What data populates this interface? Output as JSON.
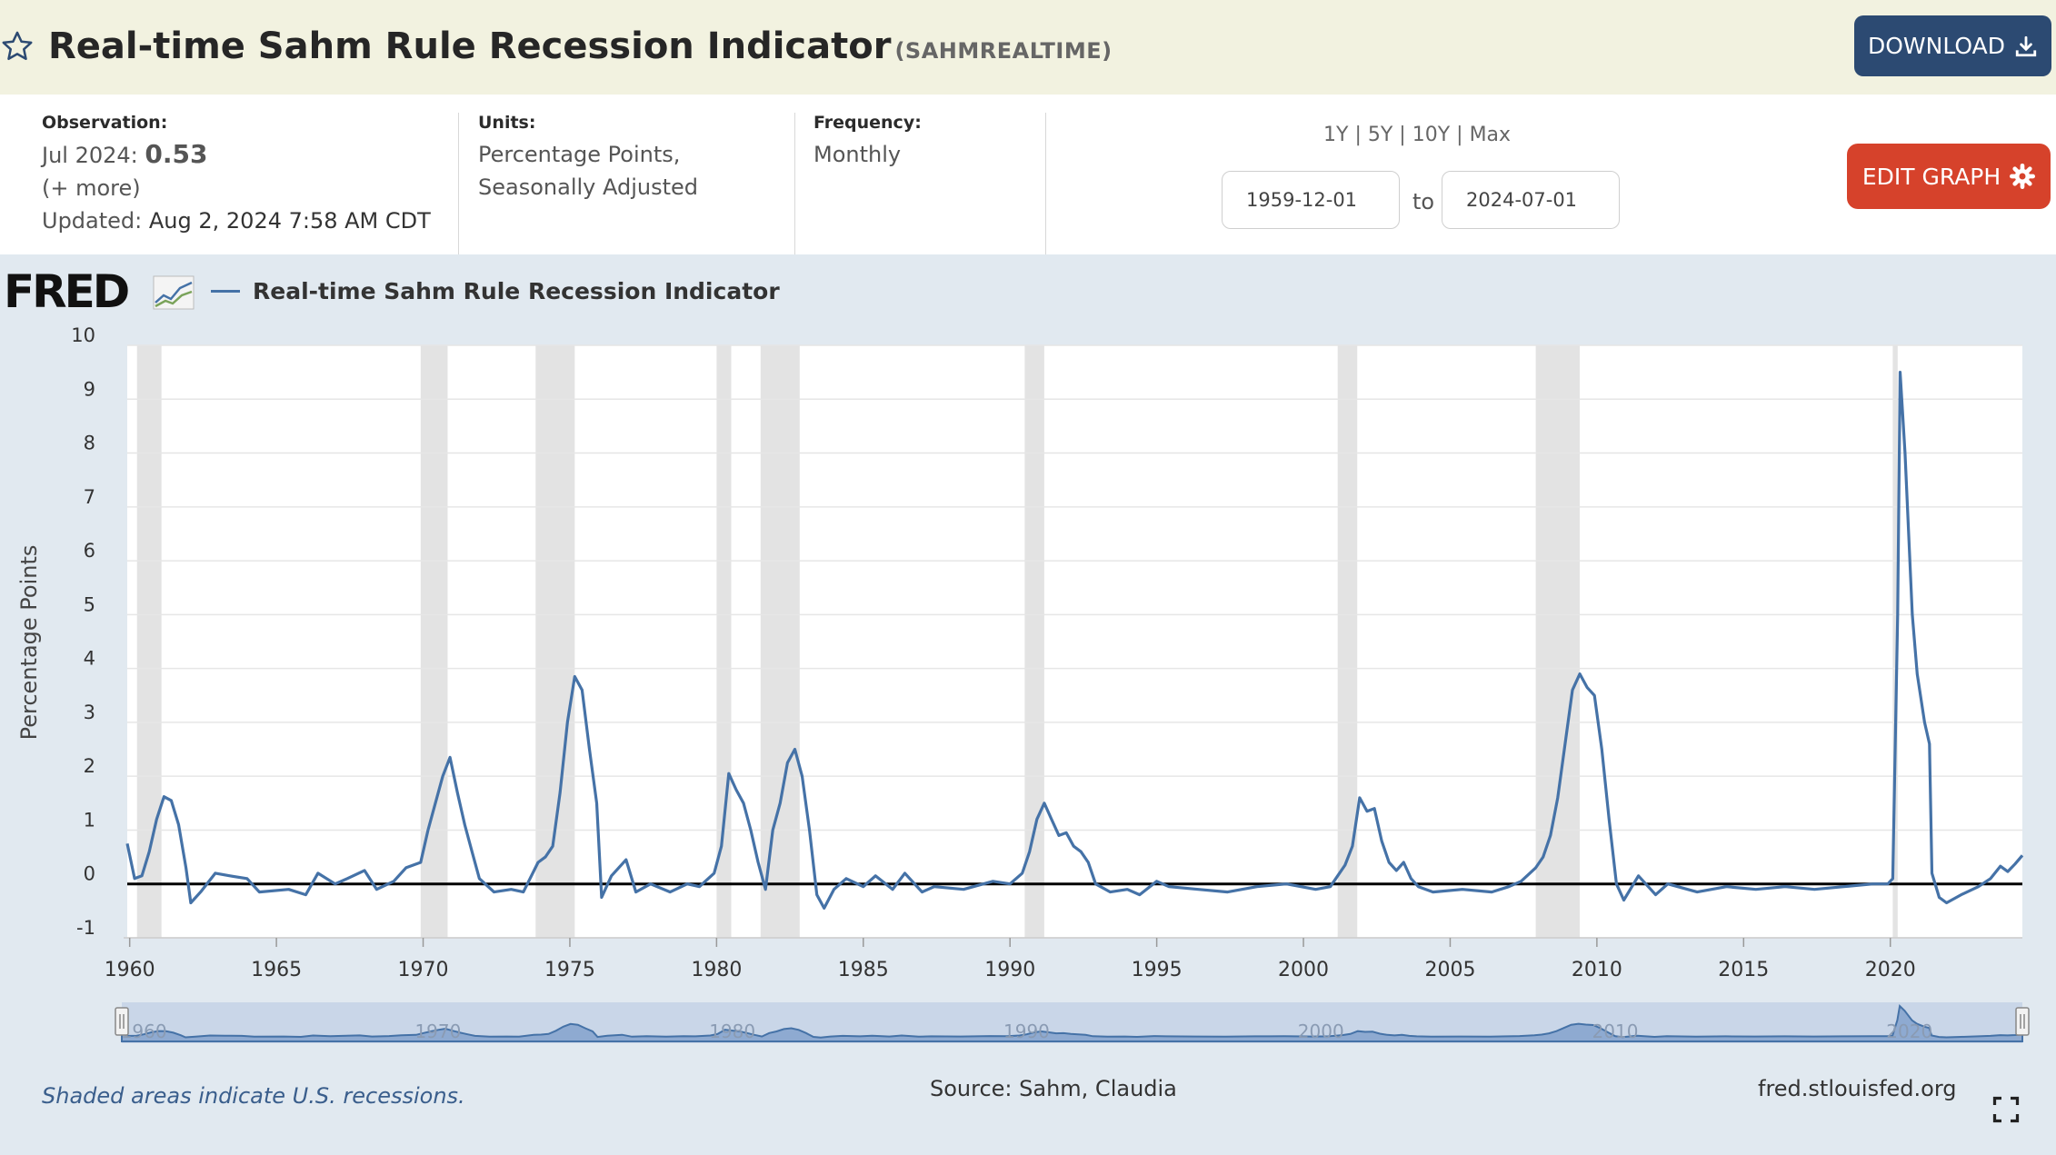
{
  "header": {
    "title": "Real-time Sahm Rule Recession Indicator",
    "series_code": "(SAHMREALTIME)",
    "download_label": "DOWNLOAD"
  },
  "meta": {
    "observation_label": "Observation:",
    "observation_period": "Jul 2024:",
    "observation_value": "0.53",
    "more_link": "(+ more)",
    "updated_label": "Updated:",
    "updated_value": "Aug 2, 2024 7:58 AM CDT",
    "units_label": "Units:",
    "units_line1": "Percentage Points,",
    "units_line2": "Seasonally Adjusted",
    "frequency_label": "Frequency:",
    "frequency_value": "Monthly"
  },
  "controls": {
    "ranges": [
      "1Y",
      "5Y",
      "10Y",
      "Max"
    ],
    "range_sep": "|",
    "start_date": "1959-12-01",
    "end_date": "2024-07-01",
    "to_label": "to",
    "edit_label": "EDIT GRAPH"
  },
  "chart": {
    "logo_text": "FRED",
    "legend_label": "Real-time Sahm Rule Recession Indicator",
    "footer_note": "Shaded areas indicate U.S. recessions.",
    "source": "Source: Sahm, Claudia",
    "site": "fred.stlouisfed.org"
  },
  "colors": {
    "series": "#4572a7",
    "recession": "#e3e3e3",
    "edit_button": "#d6422b",
    "download_button": "#2c4a72"
  },
  "chart_data": {
    "type": "line",
    "ylabel": "Percentage Points",
    "xlim": [
      "1959-12-01",
      "2024-07-01"
    ],
    "ylim": [
      -1,
      10
    ],
    "y_ticks": [
      -1,
      0,
      1,
      2,
      3,
      4,
      5,
      6,
      7,
      8,
      9,
      10
    ],
    "x_ticks": [
      1960,
      1965,
      1970,
      1975,
      1980,
      1985,
      1990,
      1995,
      2000,
      2005,
      2010,
      2015,
      2020
    ],
    "navigator_labels": [
      "1960",
      "1970",
      "1980",
      "1990",
      "2000",
      "2010",
      "2020"
    ],
    "grid": true,
    "legend": "top-left",
    "recessions": [
      [
        "1960-04",
        "1961-02"
      ],
      [
        "1969-12",
        "1970-11"
      ],
      [
        "1973-11",
        "1975-03"
      ],
      [
        "1980-01",
        "1980-07"
      ],
      [
        "1981-07",
        "1982-11"
      ],
      [
        "1990-07",
        "1991-03"
      ],
      [
        "2001-03",
        "2001-11"
      ],
      [
        "2007-12",
        "2009-06"
      ],
      [
        "2020-02",
        "2020-04"
      ]
    ],
    "series": [
      {
        "name": "Real-time Sahm Rule Recession Indicator",
        "points": [
          [
            "1959-12",
            0.75
          ],
          [
            "1960-03",
            0.1
          ],
          [
            "1960-06",
            0.15
          ],
          [
            "1960-09",
            0.6
          ],
          [
            "1960-12",
            1.2
          ],
          [
            "1961-03",
            1.62
          ],
          [
            "1961-06",
            1.55
          ],
          [
            "1961-09",
            1.1
          ],
          [
            "1961-12",
            0.3
          ],
          [
            "1962-02",
            -0.35
          ],
          [
            "1962-06",
            -0.15
          ],
          [
            "1962-12",
            0.2
          ],
          [
            "1963-06",
            0.15
          ],
          [
            "1964-01",
            0.1
          ],
          [
            "1964-06",
            -0.15
          ],
          [
            "1965-06",
            -0.1
          ],
          [
            "1966-01",
            -0.2
          ],
          [
            "1966-06",
            0.2
          ],
          [
            "1967-01",
            0.0
          ],
          [
            "1967-06",
            0.1
          ],
          [
            "1968-01",
            0.25
          ],
          [
            "1968-06",
            -0.1
          ],
          [
            "1969-01",
            0.05
          ],
          [
            "1969-06",
            0.3
          ],
          [
            "1969-12",
            0.4
          ],
          [
            "1970-03",
            1.0
          ],
          [
            "1970-06",
            1.5
          ],
          [
            "1970-09",
            2.0
          ],
          [
            "1970-12",
            2.35
          ],
          [
            "1971-03",
            1.7
          ],
          [
            "1971-06",
            1.1
          ],
          [
            "1971-09",
            0.6
          ],
          [
            "1971-12",
            0.1
          ],
          [
            "1972-06",
            -0.15
          ],
          [
            "1973-01",
            -0.1
          ],
          [
            "1973-06",
            -0.15
          ],
          [
            "1973-12",
            0.4
          ],
          [
            "1974-03",
            0.5
          ],
          [
            "1974-06",
            0.7
          ],
          [
            "1974-09",
            1.7
          ],
          [
            "1974-12",
            3.0
          ],
          [
            "1975-03",
            3.85
          ],
          [
            "1975-06",
            3.6
          ],
          [
            "1975-09",
            2.5
          ],
          [
            "1975-12",
            1.5
          ],
          [
            "1976-02",
            -0.25
          ],
          [
            "1976-06",
            0.15
          ],
          [
            "1976-12",
            0.45
          ],
          [
            "1977-04",
            -0.15
          ],
          [
            "1977-10",
            0.0
          ],
          [
            "1978-06",
            -0.15
          ],
          [
            "1979-01",
            0.0
          ],
          [
            "1979-06",
            -0.05
          ],
          [
            "1979-12",
            0.2
          ],
          [
            "1980-03",
            0.7
          ],
          [
            "1980-06",
            2.05
          ],
          [
            "1980-09",
            1.75
          ],
          [
            "1980-12",
            1.5
          ],
          [
            "1981-03",
            1.0
          ],
          [
            "1981-06",
            0.4
          ],
          [
            "1981-09",
            -0.1
          ],
          [
            "1981-12",
            1.0
          ],
          [
            "1982-03",
            1.5
          ],
          [
            "1982-06",
            2.25
          ],
          [
            "1982-09",
            2.5
          ],
          [
            "1982-12",
            2.0
          ],
          [
            "1983-03",
            1.0
          ],
          [
            "1983-06",
            -0.2
          ],
          [
            "1983-09",
            -0.45
          ],
          [
            "1984-01",
            -0.1
          ],
          [
            "1984-06",
            0.1
          ],
          [
            "1985-01",
            -0.05
          ],
          [
            "1985-06",
            0.15
          ],
          [
            "1986-01",
            -0.1
          ],
          [
            "1986-06",
            0.2
          ],
          [
            "1987-01",
            -0.15
          ],
          [
            "1987-06",
            -0.05
          ],
          [
            "1988-06",
            -0.1
          ],
          [
            "1989-06",
            0.05
          ],
          [
            "1990-01",
            0.0
          ],
          [
            "1990-06",
            0.2
          ],
          [
            "1990-09",
            0.6
          ],
          [
            "1990-12",
            1.2
          ],
          [
            "1991-03",
            1.5
          ],
          [
            "1991-06",
            1.2
          ],
          [
            "1991-09",
            0.9
          ],
          [
            "1991-12",
            0.95
          ],
          [
            "1992-03",
            0.7
          ],
          [
            "1992-06",
            0.6
          ],
          [
            "1992-09",
            0.4
          ],
          [
            "1992-12",
            0.0
          ],
          [
            "1993-06",
            -0.15
          ],
          [
            "1994-01",
            -0.1
          ],
          [
            "1994-06",
            -0.2
          ],
          [
            "1995-01",
            0.05
          ],
          [
            "1995-06",
            -0.05
          ],
          [
            "1996-06",
            -0.1
          ],
          [
            "1997-06",
            -0.15
          ],
          [
            "1998-06",
            -0.05
          ],
          [
            "1999-06",
            0.0
          ],
          [
            "2000-06",
            -0.1
          ],
          [
            "2000-12",
            -0.05
          ],
          [
            "2001-03",
            0.15
          ],
          [
            "2001-06",
            0.35
          ],
          [
            "2001-09",
            0.7
          ],
          [
            "2001-12",
            1.6
          ],
          [
            "2002-03",
            1.35
          ],
          [
            "2002-06",
            1.4
          ],
          [
            "2002-09",
            0.8
          ],
          [
            "2002-12",
            0.4
          ],
          [
            "2003-03",
            0.25
          ],
          [
            "2003-06",
            0.4
          ],
          [
            "2003-09",
            0.1
          ],
          [
            "2003-12",
            -0.05
          ],
          [
            "2004-06",
            -0.15
          ],
          [
            "2005-06",
            -0.1
          ],
          [
            "2006-06",
            -0.15
          ],
          [
            "2007-01",
            -0.05
          ],
          [
            "2007-06",
            0.05
          ],
          [
            "2007-12",
            0.3
          ],
          [
            "2008-03",
            0.5
          ],
          [
            "2008-06",
            0.9
          ],
          [
            "2008-09",
            1.6
          ],
          [
            "2008-12",
            2.6
          ],
          [
            "2009-03",
            3.6
          ],
          [
            "2009-06",
            3.9
          ],
          [
            "2009-09",
            3.65
          ],
          [
            "2009-12",
            3.5
          ],
          [
            "2010-03",
            2.5
          ],
          [
            "2010-06",
            1.2
          ],
          [
            "2010-09",
            0.0
          ],
          [
            "2010-12",
            -0.3
          ],
          [
            "2011-06",
            0.15
          ],
          [
            "2012-01",
            -0.2
          ],
          [
            "2012-06",
            0.0
          ],
          [
            "2013-06",
            -0.15
          ],
          [
            "2014-06",
            -0.05
          ],
          [
            "2015-06",
            -0.1
          ],
          [
            "2016-06",
            -0.05
          ],
          [
            "2017-06",
            -0.1
          ],
          [
            "2018-06",
            -0.05
          ],
          [
            "2019-06",
            0.0
          ],
          [
            "2019-12",
            0.0
          ],
          [
            "2020-02",
            0.1
          ],
          [
            "2020-04",
            5.0
          ],
          [
            "2020-05",
            9.5
          ],
          [
            "2020-07",
            8.0
          ],
          [
            "2020-10",
            5.0
          ],
          [
            "2020-12",
            3.9
          ],
          [
            "2021-03",
            3.0
          ],
          [
            "2021-05",
            2.6
          ],
          [
            "2021-06",
            0.2
          ],
          [
            "2021-09",
            -0.25
          ],
          [
            "2021-12",
            -0.35
          ],
          [
            "2022-06",
            -0.2
          ],
          [
            "2023-01",
            -0.05
          ],
          [
            "2023-06",
            0.1
          ],
          [
            "2023-10",
            0.33
          ],
          [
            "2024-01",
            0.23
          ],
          [
            "2024-04",
            0.37
          ],
          [
            "2024-07",
            0.53
          ]
        ]
      }
    ]
  }
}
